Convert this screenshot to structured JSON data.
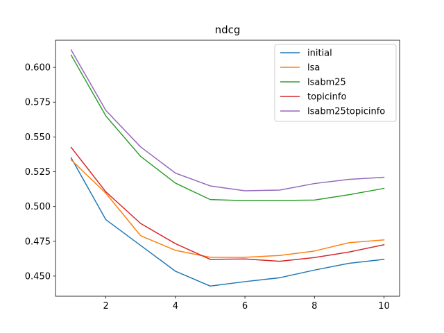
{
  "chart_data": {
    "type": "line",
    "title": "ndcg",
    "xlabel": "",
    "ylabel": "",
    "x": [
      1,
      2,
      3,
      4,
      5,
      6,
      7,
      8,
      9,
      10
    ],
    "xlim": [
      0.55,
      10.45
    ],
    "ylim": [
      0.4355,
      0.6195
    ],
    "xticks": [
      2,
      4,
      6,
      8,
      10
    ],
    "xtick_labels": [
      "2",
      "4",
      "6",
      "8",
      "10"
    ],
    "yticks": [
      0.45,
      0.475,
      0.5,
      0.525,
      0.55,
      0.575,
      0.6
    ],
    "ytick_labels": [
      "0.450",
      "0.475",
      "0.500",
      "0.525",
      "0.550",
      "0.575",
      "0.600"
    ],
    "grid": false,
    "legend_position": "top-right",
    "series": [
      {
        "name": "initial",
        "color": "#1f77b4",
        "values": [
          0.535,
          0.4905,
          0.472,
          0.4535,
          0.4428,
          0.446,
          0.4488,
          0.4543,
          0.4592,
          0.462
        ]
      },
      {
        "name": "lsa",
        "color": "#ff7f0e",
        "values": [
          0.5335,
          0.5095,
          0.479,
          0.4685,
          0.4635,
          0.4635,
          0.4648,
          0.468,
          0.474,
          0.476
        ]
      },
      {
        "name": "lsabm25",
        "color": "#2ca02c",
        "values": [
          0.6088,
          0.565,
          0.536,
          0.5168,
          0.505,
          0.5042,
          0.5043,
          0.5046,
          0.5085,
          0.513
        ]
      },
      {
        "name": "topicinfo",
        "color": "#d62728",
        "values": [
          0.5425,
          0.5105,
          0.4878,
          0.4733,
          0.462,
          0.4623,
          0.4606,
          0.4633,
          0.4673,
          0.4725
        ]
      },
      {
        "name": "lsabm25topicinfo",
        "color": "#9467bd",
        "values": [
          0.6125,
          0.569,
          0.5428,
          0.524,
          0.5148,
          0.5113,
          0.5118,
          0.5165,
          0.5195,
          0.521
        ]
      }
    ]
  }
}
